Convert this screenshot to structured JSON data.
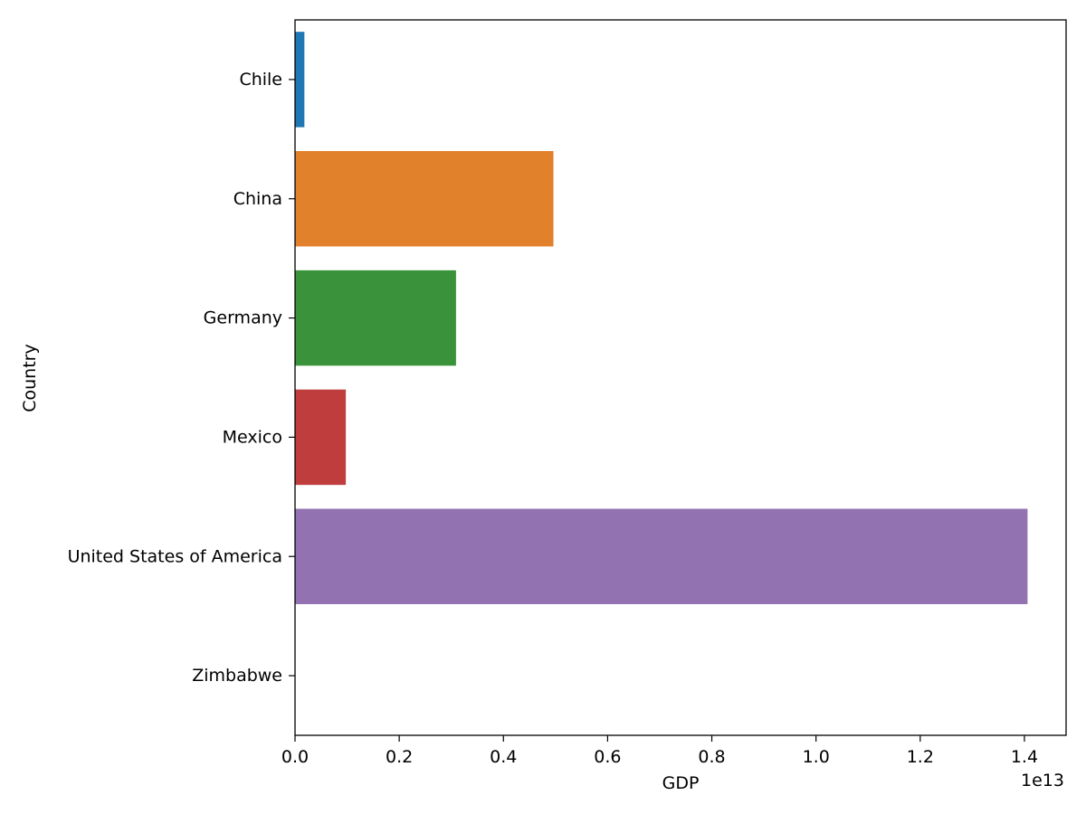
{
  "chart_data": {
    "type": "bar",
    "orientation": "horizontal",
    "title": "",
    "xlabel": "GDP",
    "ylabel": "Country",
    "x_offset_label": "1e13",
    "categories": [
      "Chile",
      "China",
      "Germany",
      "Mexico",
      "United States of America",
      "Zimbabwe"
    ],
    "values": [
      179600000000,
      4960000000000,
      3090000000000,
      975000000000,
      14060000000000,
      6000000000
    ],
    "colors": [
      "#1f77b4",
      "#e1812c",
      "#3a923a",
      "#c03d3e",
      "#9372b2",
      "#845b53"
    ],
    "xlim": [
      0,
      14800000000000
    ],
    "x_ticks": [
      0,
      2000000000000,
      4000000000000,
      6000000000000,
      8000000000000,
      10000000000000,
      12000000000000,
      14000000000000
    ],
    "x_tick_labels": [
      "0.0",
      "0.2",
      "0.4",
      "0.6",
      "0.8",
      "1.0",
      "1.2",
      "1.4"
    ],
    "grid": false,
    "legend": "none"
  }
}
